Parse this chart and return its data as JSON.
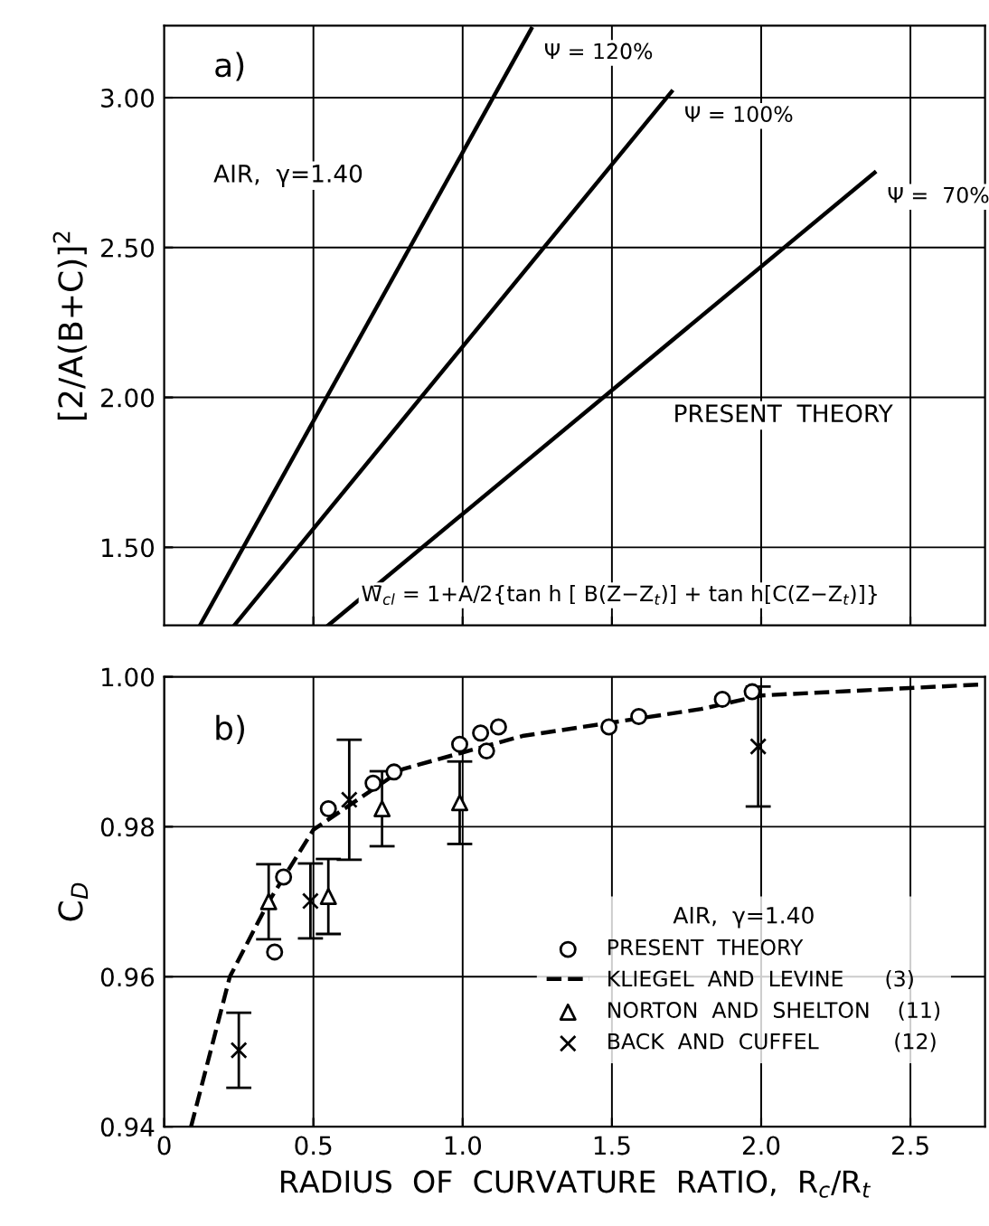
{
  "chart_data": [
    {
      "type": "line",
      "ylabel": "[2/A(B+C)]$^{2}$",
      "xlim": [
        0,
        2.75
      ],
      "ylim": [
        1.24,
        3.24
      ],
      "xticks": [
        0.5,
        1.0,
        1.5,
        2.0,
        2.5
      ],
      "yticks": [
        {
          "value": 1.5,
          "label": "1.50"
        },
        {
          "value": 2.0,
          "label": "2.00"
        },
        {
          "value": 2.5,
          "label": "2.50"
        },
        {
          "value": 3.0,
          "label": "3.00"
        }
      ],
      "tick_labels": "y",
      "grid": true,
      "legend": false,
      "marker": "none",
      "line_style": "solid",
      "series": [
        {
          "name": "Ψ = 120%",
          "color": "#000000",
          "x": [
            0.12,
            1.23
          ],
          "values": [
            1.24,
            3.23
          ]
        },
        {
          "name": "Ψ = 100%",
          "color": "#000000",
          "x": [
            0.235,
            1.7
          ],
          "values": [
            1.24,
            3.02
          ]
        },
        {
          "name": "Ψ =  70%",
          "color": "#000000",
          "x": [
            0.55,
            2.38
          ],
          "values": [
            1.24,
            2.75
          ]
        }
      ],
      "annotations": [
        "a)",
        "AIR,  γ=1.40",
        "PRESENT  THEORY",
        "W̄$_{cl}$ = 1+A/2{tan h [ B(Z−Z$_{t}$)] + tan h[C(Z−Z$_{t}$)]}"
      ]
    },
    {
      "type": "scatter",
      "xlabel": "RADIUS  OF  CURVATURE  RATIO,  R$_{c}$/R$_{t}$",
      "ylabel": "C$_{D}$",
      "xlim": [
        0,
        2.75
      ],
      "ylim": [
        0.94,
        1.0
      ],
      "xticks": [
        {
          "value": 0,
          "label": "0"
        },
        0.5,
        {
          "value": 1.0,
          "label": "1.0"
        },
        1.5,
        {
          "value": 2.0,
          "label": "2.0"
        },
        2.5
      ],
      "yticks": [
        0.94,
        0.96,
        0.98,
        {
          "value": 1.0,
          "label": "1.00"
        }
      ],
      "grid": true,
      "legend": "lower right",
      "legend_title": "AIR,  γ=1.40",
      "series": [
        {
          "name": "PRESENT  THEORY",
          "type": "scatter",
          "marker": "circle",
          "color": "#000000",
          "x": [
            0.37,
            0.4,
            0.55,
            0.7,
            0.77,
            0.99,
            1.06,
            1.08,
            1.12,
            1.49,
            1.59,
            1.87,
            1.97
          ],
          "values": [
            0.9633,
            0.9733,
            0.9824,
            0.9858,
            0.9873,
            0.991,
            0.9925,
            0.9901,
            0.9933,
            0.9933,
            0.9947,
            0.997,
            0.998
          ]
        },
        {
          "name": "KLIEGEL  AND  LEVINE      (3)",
          "type": "line",
          "line_style": "dashed",
          "marker": "none",
          "color": "#000000",
          "x": [
            0.09,
            0.22,
            0.35,
            0.5,
            0.8,
            1.2,
            1.8,
            2.0,
            2.75
          ],
          "values": [
            0.94,
            0.96,
            0.97,
            0.9796,
            0.9877,
            0.9921,
            0.9957,
            0.9975,
            0.999
          ]
        },
        {
          "name": "NORTON  AND  SHELTON    (11)",
          "type": "scatter",
          "marker": "triangle",
          "color": "#000000",
          "x": [
            0.35,
            0.55,
            0.73,
            0.99
          ],
          "values": [
            0.97,
            0.9707,
            0.9824,
            0.9832
          ],
          "errors": [
            0.005,
            0.005,
            0.005,
            0.0055
          ]
        },
        {
          "name": "BACK  AND  CUFFEL           (12)",
          "type": "scatter",
          "marker": "cross",
          "color": "#000000",
          "x": [
            0.25,
            0.49,
            0.62,
            1.99
          ],
          "values": [
            0.9502,
            0.9701,
            0.9836,
            0.9907
          ],
          "errors": [
            0.005,
            0.005,
            0.008,
            0.008
          ]
        }
      ],
      "annotations": [
        "b)"
      ]
    }
  ]
}
